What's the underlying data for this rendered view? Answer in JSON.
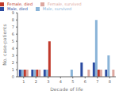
{
  "chart_data": {
    "type": "bar",
    "xlabel": "Decade of life",
    "ylabel": "No. case-patients",
    "categories": [
      "1",
      "2",
      "3",
      "4",
      "5",
      "6",
      "7",
      "8"
    ],
    "series": [
      {
        "name": "Male, died",
        "color": "#2a4aa0",
        "values": [
          1,
          1,
          1,
          0,
          0,
          2,
          2,
          1
        ]
      },
      {
        "name": "Male, survived",
        "color": "#8ab4d8",
        "values": [
          1,
          1,
          1,
          0,
          1,
          0,
          8,
          3
        ]
      },
      {
        "name": "Female, died",
        "color": "#c0392b",
        "values": [
          1,
          1,
          5,
          0,
          0,
          0,
          1,
          0
        ]
      },
      {
        "name": "Female, survived",
        "color": "#dda8a0",
        "values": [
          1,
          1,
          0,
          0,
          0,
          1,
          1,
          1
        ]
      }
    ],
    "ylim": [
      0,
      9
    ],
    "yticks": [
      0,
      1,
      2,
      3,
      4,
      5,
      6,
      7,
      8,
      9
    ],
    "grid": false,
    "legend": "upper left"
  }
}
